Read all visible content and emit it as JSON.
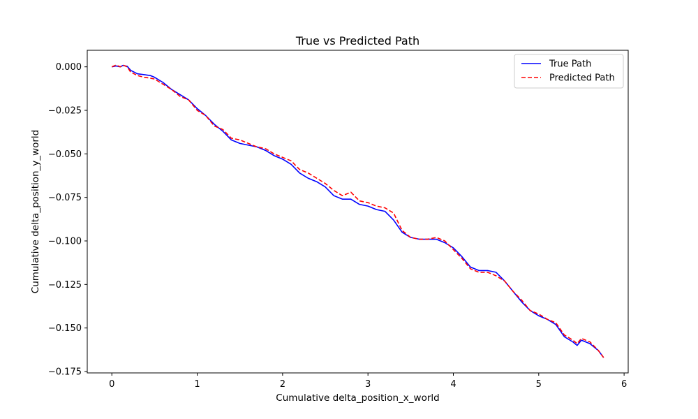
{
  "chart_data": {
    "type": "line",
    "title": "True vs Predicted Path",
    "xlabel": "Cumulative delta_position_x_world",
    "ylabel": "Cumulative delta_position_y_world",
    "xlim": [
      -0.288,
      6.048
    ],
    "ylim": [
      -0.1758,
      0.0095
    ],
    "xticks": [
      0,
      1,
      2,
      3,
      4,
      5,
      6
    ],
    "yticks": [
      0.0,
      -0.025,
      -0.05,
      -0.075,
      -0.1,
      -0.125,
      -0.15,
      -0.175
    ],
    "ytick_labels": [
      "0.000",
      "−0.025",
      "−0.050",
      "−0.075",
      "−0.100",
      "−0.125",
      "−0.150",
      "−0.175"
    ],
    "xtick_labels": [
      "0",
      "1",
      "2",
      "3",
      "4",
      "5",
      "6"
    ],
    "grid": false,
    "legend_position": "top-right",
    "series": [
      {
        "name": "True Path",
        "color": "#0000ff",
        "style": "solid",
        "points": [
          [
            0.0,
            0.0
          ],
          [
            0.05,
            0.0005
          ],
          [
            0.1,
            0.0
          ],
          [
            0.13,
            0.0008
          ],
          [
            0.18,
            0.0003
          ],
          [
            0.22,
            -0.002
          ],
          [
            0.3,
            -0.004
          ],
          [
            0.38,
            -0.0045
          ],
          [
            0.45,
            -0.005
          ],
          [
            0.5,
            -0.006
          ],
          [
            0.6,
            -0.009
          ],
          [
            0.7,
            -0.013
          ],
          [
            0.8,
            -0.016
          ],
          [
            0.9,
            -0.019
          ],
          [
            1.0,
            -0.024
          ],
          [
            1.1,
            -0.028
          ],
          [
            1.2,
            -0.033
          ],
          [
            1.3,
            -0.037
          ],
          [
            1.4,
            -0.042
          ],
          [
            1.5,
            -0.044
          ],
          [
            1.6,
            -0.045
          ],
          [
            1.7,
            -0.046
          ],
          [
            1.8,
            -0.048
          ],
          [
            1.9,
            -0.051
          ],
          [
            2.0,
            -0.053
          ],
          [
            2.1,
            -0.056
          ],
          [
            2.2,
            -0.061
          ],
          [
            2.3,
            -0.064
          ],
          [
            2.4,
            -0.066
          ],
          [
            2.5,
            -0.069
          ],
          [
            2.6,
            -0.074
          ],
          [
            2.7,
            -0.076
          ],
          [
            2.8,
            -0.076
          ],
          [
            2.9,
            -0.079
          ],
          [
            3.0,
            -0.08
          ],
          [
            3.1,
            -0.082
          ],
          [
            3.2,
            -0.083
          ],
          [
            3.3,
            -0.088
          ],
          [
            3.4,
            -0.095
          ],
          [
            3.5,
            -0.098
          ],
          [
            3.6,
            -0.099
          ],
          [
            3.7,
            -0.099
          ],
          [
            3.8,
            -0.099
          ],
          [
            3.9,
            -0.101
          ],
          [
            4.0,
            -0.104
          ],
          [
            4.1,
            -0.109
          ],
          [
            4.2,
            -0.115
          ],
          [
            4.3,
            -0.117
          ],
          [
            4.4,
            -0.117
          ],
          [
            4.5,
            -0.118
          ],
          [
            4.6,
            -0.123
          ],
          [
            4.7,
            -0.129
          ],
          [
            4.8,
            -0.135
          ],
          [
            4.9,
            -0.14
          ],
          [
            5.0,
            -0.143
          ],
          [
            5.1,
            -0.145
          ],
          [
            5.2,
            -0.148
          ],
          [
            5.3,
            -0.155
          ],
          [
            5.4,
            -0.158
          ],
          [
            5.45,
            -0.16
          ],
          [
            5.5,
            -0.157
          ],
          [
            5.6,
            -0.159
          ],
          [
            5.7,
            -0.163
          ],
          [
            5.76,
            -0.167
          ]
        ]
      },
      {
        "name": "Predicted Path",
        "color": "#ff0000",
        "style": "dashed",
        "points": [
          [
            0.0,
            0.0
          ],
          [
            0.05,
            0.001
          ],
          [
            0.1,
            0.0
          ],
          [
            0.13,
            0.001
          ],
          [
            0.18,
            0.0
          ],
          [
            0.22,
            -0.003
          ],
          [
            0.3,
            -0.005
          ],
          [
            0.38,
            -0.006
          ],
          [
            0.45,
            -0.0065
          ],
          [
            0.5,
            -0.007
          ],
          [
            0.6,
            -0.01
          ],
          [
            0.7,
            -0.013
          ],
          [
            0.8,
            -0.017
          ],
          [
            0.9,
            -0.019
          ],
          [
            1.0,
            -0.025
          ],
          [
            1.1,
            -0.028
          ],
          [
            1.2,
            -0.034
          ],
          [
            1.3,
            -0.036
          ],
          [
            1.4,
            -0.041
          ],
          [
            1.5,
            -0.042
          ],
          [
            1.6,
            -0.044
          ],
          [
            1.7,
            -0.046
          ],
          [
            1.8,
            -0.047
          ],
          [
            1.9,
            -0.05
          ],
          [
            2.0,
            -0.052
          ],
          [
            2.1,
            -0.054
          ],
          [
            2.2,
            -0.059
          ],
          [
            2.3,
            -0.061
          ],
          [
            2.4,
            -0.064
          ],
          [
            2.5,
            -0.067
          ],
          [
            2.6,
            -0.071
          ],
          [
            2.7,
            -0.074
          ],
          [
            2.8,
            -0.072
          ],
          [
            2.9,
            -0.077
          ],
          [
            3.0,
            -0.078
          ],
          [
            3.1,
            -0.08
          ],
          [
            3.2,
            -0.081
          ],
          [
            3.3,
            -0.084
          ],
          [
            3.4,
            -0.094
          ],
          [
            3.5,
            -0.098
          ],
          [
            3.6,
            -0.099
          ],
          [
            3.7,
            -0.099
          ],
          [
            3.8,
            -0.098
          ],
          [
            3.9,
            -0.1
          ],
          [
            4.0,
            -0.105
          ],
          [
            4.1,
            -0.11
          ],
          [
            4.2,
            -0.116
          ],
          [
            4.3,
            -0.118
          ],
          [
            4.4,
            -0.118
          ],
          [
            4.5,
            -0.12
          ],
          [
            4.6,
            -0.123
          ],
          [
            4.7,
            -0.129
          ],
          [
            4.8,
            -0.134
          ],
          [
            4.9,
            -0.14
          ],
          [
            5.0,
            -0.142
          ],
          [
            5.1,
            -0.145
          ],
          [
            5.2,
            -0.147
          ],
          [
            5.3,
            -0.154
          ],
          [
            5.4,
            -0.157
          ],
          [
            5.45,
            -0.159
          ],
          [
            5.5,
            -0.156
          ],
          [
            5.6,
            -0.158
          ],
          [
            5.7,
            -0.163
          ],
          [
            5.76,
            -0.167
          ]
        ]
      }
    ]
  }
}
